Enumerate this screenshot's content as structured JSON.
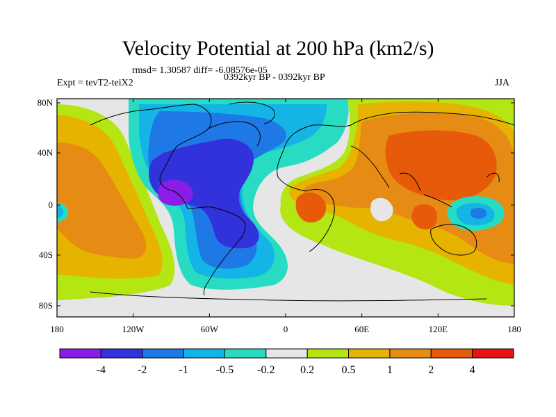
{
  "title": "Velocity Potential at 200 hPa (km2/s)",
  "stats_line": "rmsd= 1.30587 diff= -6.08576e-05",
  "experiment": "Expt = tevT2-teiX2",
  "period": "0392kyr BP - 0392kyr BP",
  "season": "JJA",
  "lat_ticks": [
    "80N",
    "40N",
    "0",
    "40S",
    "80S"
  ],
  "lon_ticks": [
    "180",
    "120W",
    "60W",
    "0",
    "60E",
    "120E",
    "180"
  ],
  "colorbar": {
    "labels": [
      "-4",
      "-2",
      "-1",
      "-0.5",
      "-0.2",
      "0.2",
      "0.5",
      "1",
      "2",
      "4"
    ],
    "colors": [
      "#8a1ee8",
      "#3232dc",
      "#1e78e6",
      "#14b4e6",
      "#28dcc3",
      "#e6e6e6",
      "#b4e614",
      "#e6b400",
      "#e68c14",
      "#e65a0a",
      "#e61414"
    ]
  }
}
